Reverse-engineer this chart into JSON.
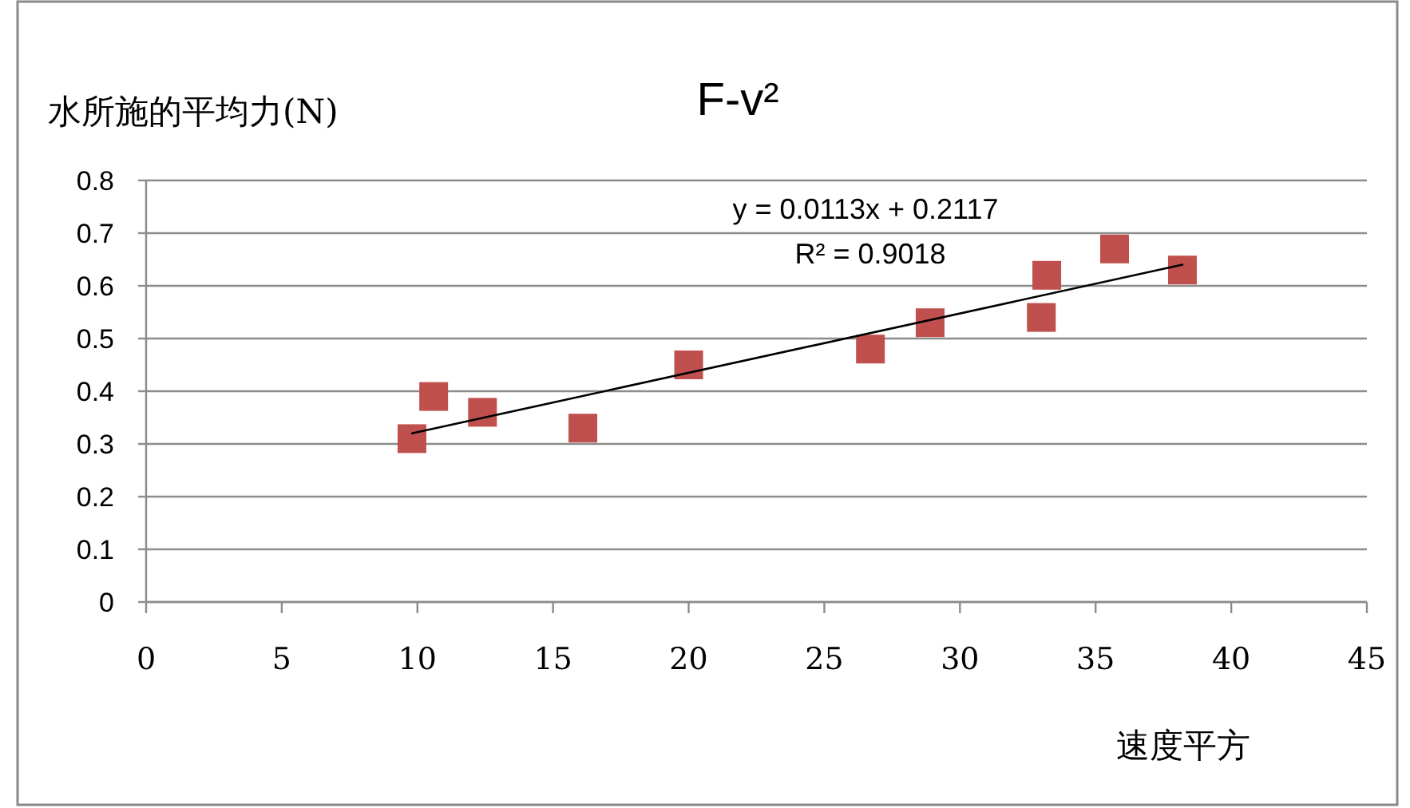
{
  "chart_data": {
    "type": "scatter",
    "title": "F-v²",
    "ylabel": "水所施的平均力(N)",
    "xlabel": "速度平方",
    "annotations": [
      "y = 0.0113x + 0.2117",
      "R² = 0.9018"
    ],
    "xlim": [
      0,
      45
    ],
    "xticks": [
      0,
      5,
      10,
      15,
      20,
      25,
      30,
      35,
      40,
      45
    ],
    "ylim": [
      0,
      0.8
    ],
    "yticks": [
      0,
      0.1,
      0.2,
      0.3,
      0.4,
      0.5,
      0.6,
      0.7,
      0.8
    ],
    "grid": "y",
    "series": [
      {
        "color": "#c0504d",
        "marker": "square",
        "x": [
          9.8,
          10.6,
          12.4,
          16.1,
          20.0,
          26.7,
          28.9,
          33.0,
          33.2,
          35.7,
          38.2
        ],
        "values": [
          0.31,
          0.39,
          0.36,
          0.33,
          0.45,
          0.48,
          0.53,
          0.54,
          0.62,
          0.67,
          0.63
        ]
      },
      {
        "type": "line",
        "color": "#000000",
        "x": [
          9.8,
          38.2
        ],
        "values": [
          0.32,
          0.64
        ]
      }
    ]
  }
}
